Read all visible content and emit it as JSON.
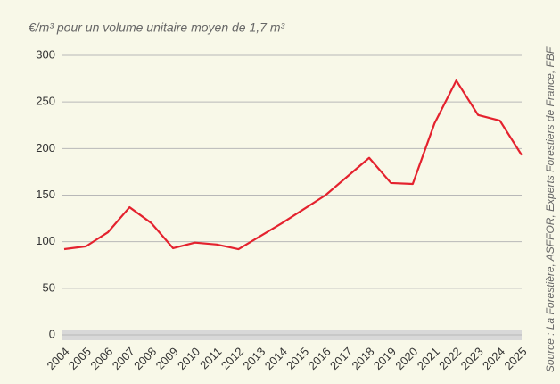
{
  "chart_data": {
    "type": "line",
    "title": "€/m³ pour un volume unitaire moyen de 1,7 m³",
    "source": "Source : La Forestière, ASFFOR, Experts Forestiers de France, FBF",
    "x": [
      "2004",
      "2005",
      "2006",
      "2007",
      "2008",
      "2009",
      "2010",
      "2011",
      "2012",
      "2013",
      "2014",
      "2015",
      "2016",
      "2017",
      "2018",
      "2019",
      "2020",
      "2021",
      "2022",
      "2023",
      "2024",
      "2025"
    ],
    "series": [
      {
        "color": "#e4222e",
        "values": [
          92,
          95,
          110,
          137,
          120,
          93,
          99,
          97,
          92,
          106,
          120,
          135,
          150,
          170,
          190,
          163,
          162,
          227,
          273,
          236,
          230,
          193
        ]
      }
    ],
    "ylim": [
      0,
      300
    ],
    "yticks": [
      0,
      50,
      100,
      150,
      200,
      250,
      300
    ],
    "grid": true
  }
}
